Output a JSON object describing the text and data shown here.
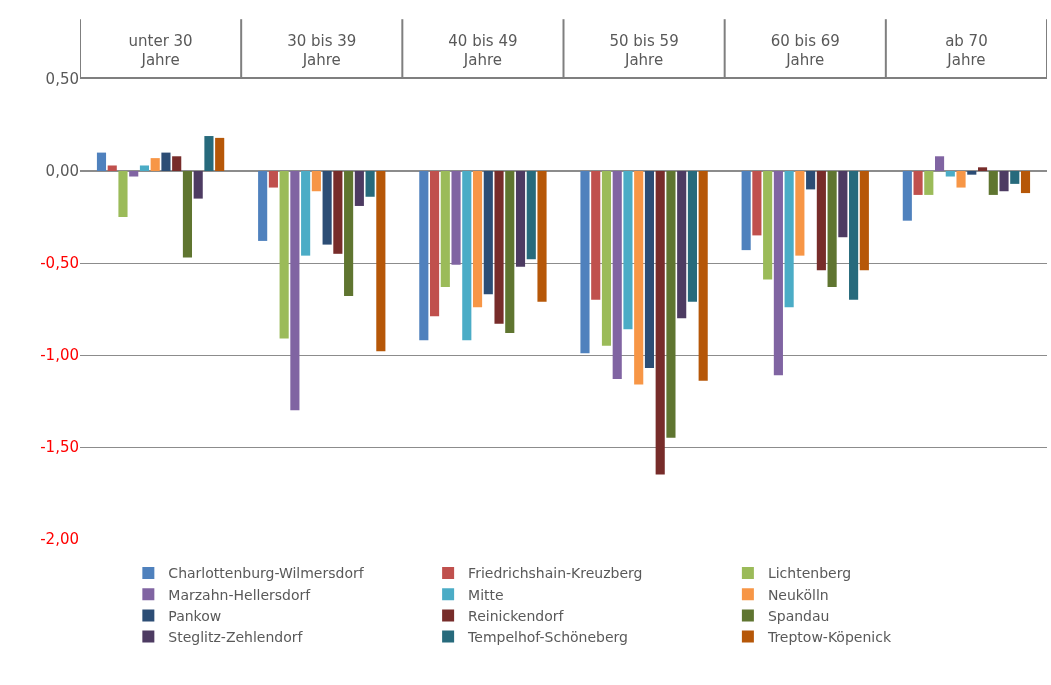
{
  "chart_data": {
    "type": "bar",
    "categories": [
      "unter 30 Jahre",
      "30 bis 39 Jahre",
      "40 bis 49 Jahre",
      "50 bis 59 Jahre",
      "60 bis 69 Jahre",
      "ab 70 Jahre"
    ],
    "ylim": [
      -2.0,
      0.5
    ],
    "yticks": [
      {
        "value": 0.5,
        "label": "0,50"
      },
      {
        "value": 0.0,
        "label": "0,00"
      },
      {
        "value": -0.5,
        "label": "-0,50"
      },
      {
        "value": -1.0,
        "label": "-1,00"
      },
      {
        "value": -1.5,
        "label": "-1,50"
      },
      {
        "value": -2.0,
        "label": "-2,00"
      }
    ],
    "grid": "y",
    "legend": "bottom",
    "series": [
      {
        "name": "Charlottenburg-Wilmersdorf",
        "color": "#4f81bd",
        "values": [
          0.1,
          -0.38,
          -0.92,
          -0.99,
          -0.43,
          -0.27
        ]
      },
      {
        "name": "Friedrichshain-Kreuzberg",
        "color": "#c0504d",
        "values": [
          0.03,
          -0.09,
          -0.79,
          -0.7,
          -0.35,
          -0.13
        ]
      },
      {
        "name": "Lichtenberg",
        "color": "#9bbb59",
        "values": [
          -0.25,
          -0.91,
          -0.63,
          -0.95,
          -0.59,
          -0.13
        ]
      },
      {
        "name": "Marzahn-Hellersdorf",
        "color": "#8064a2",
        "values": [
          -0.03,
          -1.3,
          -0.51,
          -1.13,
          -1.11,
          0.08
        ]
      },
      {
        "name": "Mitte",
        "color": "#4bacc6",
        "values": [
          0.03,
          -0.46,
          -0.92,
          -0.86,
          -0.74,
          -0.03
        ]
      },
      {
        "name": "Neukölln",
        "color": "#f79646",
        "values": [
          0.07,
          -0.11,
          -0.74,
          -1.16,
          -0.46,
          -0.09
        ]
      },
      {
        "name": "Pankow",
        "color": "#2c4d75",
        "values": [
          0.1,
          -0.4,
          -0.67,
          -1.07,
          -0.1,
          -0.02
        ]
      },
      {
        "name": "Reinickendorf",
        "color": "#772c2a",
        "values": [
          0.08,
          -0.45,
          -0.83,
          -1.65,
          -0.54,
          0.02
        ]
      },
      {
        "name": "Spandau",
        "color": "#5f7530",
        "values": [
          -0.47,
          -0.68,
          -0.88,
          -1.45,
          -0.63,
          -0.13
        ]
      },
      {
        "name": "Steglitz-Zehlendorf",
        "color": "#4d3b62",
        "values": [
          -0.15,
          -0.19,
          -0.52,
          -0.8,
          -0.36,
          -0.11
        ]
      },
      {
        "name": "Tempelhof-Schöneberg",
        "color": "#276a7c",
        "values": [
          0.19,
          -0.14,
          -0.48,
          -0.71,
          -0.7,
          -0.07
        ]
      },
      {
        "name": "Treptow-Köpenick",
        "color": "#b65708",
        "values": [
          0.18,
          -0.98,
          -0.71,
          -1.14,
          -0.54,
          -0.12
        ]
      }
    ]
  }
}
